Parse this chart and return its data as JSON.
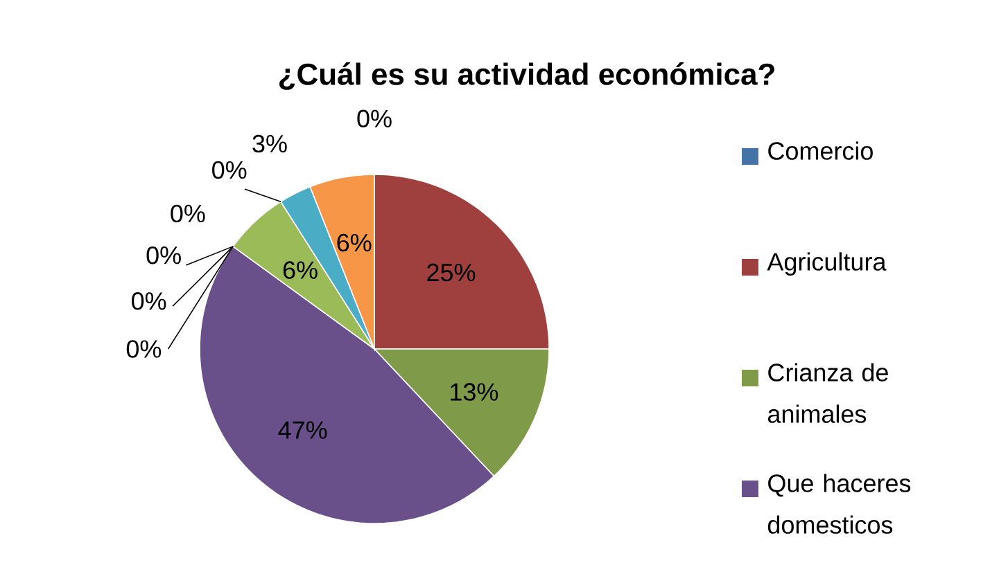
{
  "chart_data": {
    "type": "pie",
    "title": "¿Cuál es su actividad económica?",
    "categories": [
      "Comercio",
      "Agricultura",
      "Crianza de animales",
      "Que haceres domesticos",
      null,
      null,
      null,
      null,
      null,
      null,
      null,
      null
    ],
    "values": [
      0,
      25,
      13,
      47,
      0,
      0,
      0,
      0,
      6,
      0,
      3,
      6
    ],
    "colors": [
      "#4572a7",
      "#a0403e",
      "#7f9a48",
      "#69508a",
      "#3e8fa7",
      "#d9843b",
      "#5a7fb0",
      "#b35a58",
      "#9bbb59",
      "#7d6fa0",
      "#4bacc6",
      "#f79646"
    ],
    "value_labels": [
      "0%",
      "25%",
      "13%",
      "47%",
      "0%",
      "0%",
      "0%",
      "0%",
      "6%",
      "0%",
      "3%",
      "6%"
    ],
    "legend": "right"
  }
}
